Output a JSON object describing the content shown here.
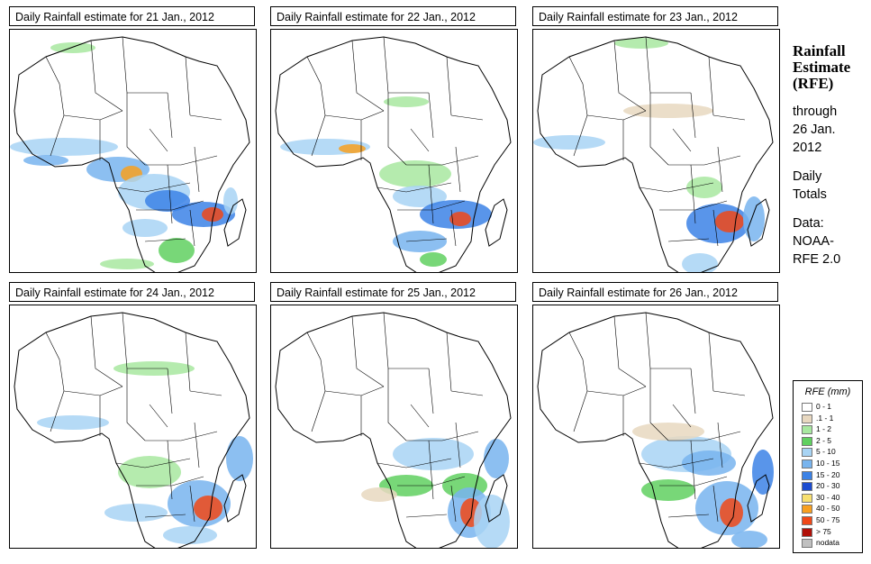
{
  "panels": [
    {
      "title": "Daily Rainfall estimate for  21 Jan., 2012"
    },
    {
      "title": "Daily Rainfall estimate for  22 Jan., 2012"
    },
    {
      "title": "Daily Rainfall estimate for  23 Jan., 2012"
    },
    {
      "title": "Daily Rainfall estimate for  24 Jan., 2012"
    },
    {
      "title": "Daily Rainfall estimate for  25 Jan., 2012"
    },
    {
      "title": "Daily Rainfall estimate for  26 Jan., 2012"
    }
  ],
  "sidebar": {
    "heading_line1": "Rainfall",
    "heading_line2": "Estimate",
    "heading_line3": "(RFE)",
    "through_label": "through",
    "date_line1": "26 Jan.",
    "date_line2": "2012",
    "daily_label": "Daily",
    "totals_label": "Totals",
    "data_label": "Data:",
    "source_line1": "NOAA-",
    "source_line2": "RFE 2.0"
  },
  "legend": {
    "title": "RFE (mm)",
    "items": [
      {
        "label": "0 - 1",
        "color": "#ffffff"
      },
      {
        "label": ".1 - 1",
        "color": "#e8d8c0"
      },
      {
        "label": "1 - 2",
        "color": "#a8e8a0"
      },
      {
        "label": "2 - 5",
        "color": "#60d060"
      },
      {
        "label": "5 - 10",
        "color": "#a8d4f4"
      },
      {
        "label": "10 - 15",
        "color": "#78b4ee"
      },
      {
        "label": "15 - 20",
        "color": "#3c82e6"
      },
      {
        "label": "20 - 30",
        "color": "#1c4cd0"
      },
      {
        "label": "30 - 40",
        "color": "#f8e070"
      },
      {
        "label": "40 - 50",
        "color": "#f8a020"
      },
      {
        "label": "50 - 75",
        "color": "#f04818"
      },
      {
        "label": "> 75",
        "color": "#b01008"
      },
      {
        "label": "nodata",
        "color": "#c0c0c0"
      }
    ]
  }
}
